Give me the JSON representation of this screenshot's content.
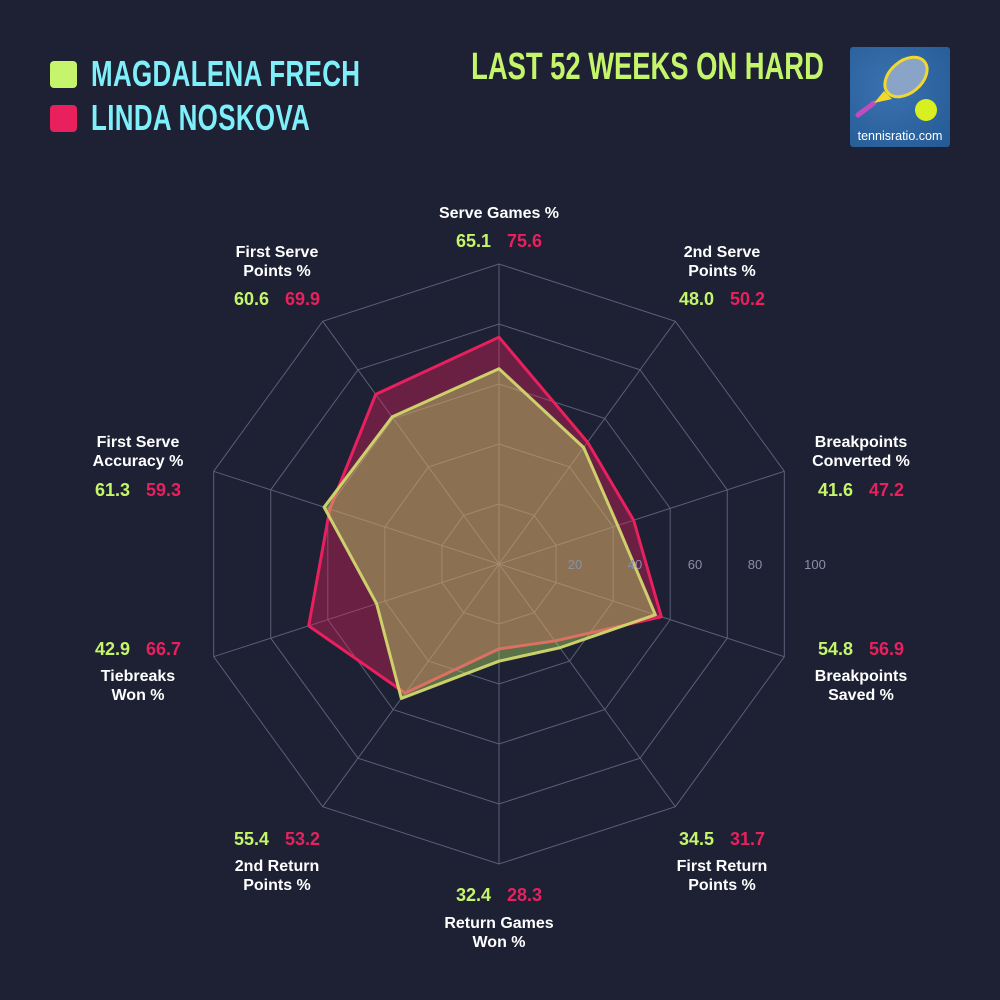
{
  "title": "LAST 52 WEEKS ON HARD",
  "logo_text": "tennisratio.com",
  "colors": {
    "background": "#1d2133",
    "player1": "#c4f56b",
    "player2": "#e8205e",
    "legend_text": "#7ff0fa",
    "grid": "#5a6078"
  },
  "chart_data": {
    "type": "radar",
    "title": "LAST 52 WEEKS ON HARD",
    "rlim": [
      0,
      100
    ],
    "ticks": [
      20,
      40,
      60,
      80,
      100
    ],
    "grid": true,
    "legend_placement": "top-left",
    "axes": [
      [
        "Serve Games %"
      ],
      [
        "2nd Serve",
        "Points %"
      ],
      [
        "Breakpoints",
        "Converted %"
      ],
      [
        "Breakpoints",
        "Saved %"
      ],
      [
        "First Return",
        "Points %"
      ],
      [
        "Return Games",
        "Won %"
      ],
      [
        "2nd Return",
        "Points %"
      ],
      [
        "Tiebreaks",
        "Won %"
      ],
      [
        "First Serve",
        "Accuracy %"
      ],
      [
        "First Serve",
        "Points %"
      ]
    ],
    "series": [
      {
        "name": "MAGDALENA FRECH",
        "color": "#c4f56b",
        "values": [
          65.1,
          48.0,
          41.6,
          54.8,
          34.5,
          32.4,
          55.4,
          42.9,
          61.3,
          60.6
        ]
      },
      {
        "name": "LINDA NOSKOVA",
        "color": "#e8205e",
        "values": [
          75.6,
          50.2,
          47.2,
          56.9,
          31.7,
          28.3,
          53.2,
          66.7,
          59.3,
          69.9
        ]
      }
    ]
  }
}
